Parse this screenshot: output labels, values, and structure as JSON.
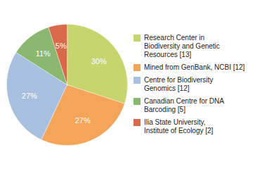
{
  "chart_data": {
    "type": "pie",
    "categories": [
      "Research Center in\nBiodiversity and Genetic\nResources [13]",
      "Mined from GenBank, NCBI [12]",
      "Centre for Biodiversity\nGenomics [12]",
      "Canadian Centre for DNA\nBarcoding [5]",
      "Ilia State University,\nInstitute of Ecology [2]"
    ],
    "values": [
      30,
      27,
      27,
      11,
      5
    ],
    "value_labels": [
      "30%",
      "27%",
      "27%",
      "11%",
      "5%"
    ],
    "colors": [
      "#c8d46e",
      "#f4a55a",
      "#a8c0e0",
      "#8ab870",
      "#d9694a"
    ],
    "data_labels": true,
    "legend": "right"
  }
}
